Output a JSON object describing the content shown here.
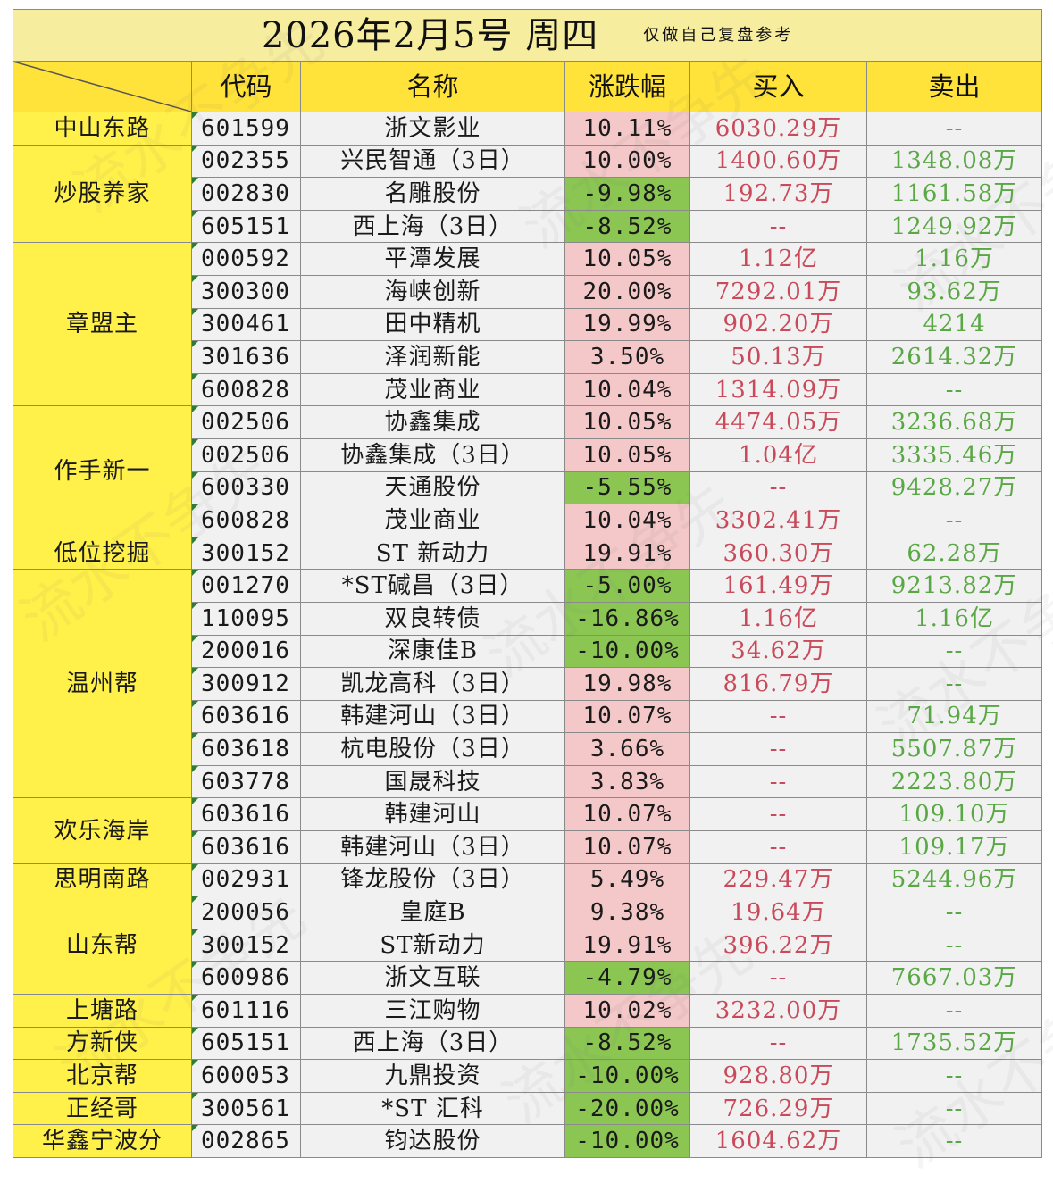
{
  "title": "2026年2月5号  周四",
  "subtitle": "仅做自己复盘参考",
  "headers": [
    "代码",
    "名称",
    "涨跌幅",
    "买入",
    "卖出"
  ],
  "colors": {
    "up": "#f4c8c8",
    "down": "#8bc653",
    "buy_text": "#c94a5a",
    "sell_text": "#5aa845",
    "group_bg": "#fff04a",
    "header_bg": "#ffe23a"
  },
  "watermark_text": "流水不争先",
  "groups": [
    {
      "name": "中山东路",
      "rows": [
        {
          "code": "601599",
          "name": "浙文影业",
          "change": "10.11%",
          "dir": "up",
          "buy": "6030.29万",
          "sell": "--"
        }
      ]
    },
    {
      "name": "炒股养家",
      "rows": [
        {
          "code": "002355",
          "name": "兴民智通（3日）",
          "change": "10.00%",
          "dir": "up",
          "buy": "1400.60万",
          "sell": "1348.08万"
        },
        {
          "code": "002830",
          "name": "名雕股份",
          "change": "-9.98%",
          "dir": "down",
          "buy": "192.73万",
          "sell": "1161.58万"
        },
        {
          "code": "605151",
          "name": "西上海（3日）",
          "change": "-8.52%",
          "dir": "down",
          "buy": "--",
          "sell": "1249.92万"
        }
      ]
    },
    {
      "name": "章盟主",
      "rows": [
        {
          "code": "000592",
          "name": "平潭发展",
          "change": "10.05%",
          "dir": "up",
          "buy": "1.12亿",
          "sell": "1.16万"
        },
        {
          "code": "300300",
          "name": "海峡创新",
          "change": "20.00%",
          "dir": "up",
          "buy": "7292.01万",
          "sell": "93.62万"
        },
        {
          "code": "300461",
          "name": "田中精机",
          "change": "19.99%",
          "dir": "up",
          "buy": "902.20万",
          "sell": "4214"
        },
        {
          "code": "301636",
          "name": "泽润新能",
          "change": "3.50%",
          "dir": "up",
          "buy": "50.13万",
          "sell": "2614.32万"
        },
        {
          "code": "600828",
          "name": "茂业商业",
          "change": "10.04%",
          "dir": "up",
          "buy": "1314.09万",
          "sell": "--"
        }
      ]
    },
    {
      "name": "作手新一",
      "rows": [
        {
          "code": "002506",
          "name": "协鑫集成",
          "change": "10.05%",
          "dir": "up",
          "buy": "4474.05万",
          "sell": "3236.68万"
        },
        {
          "code": "002506",
          "name": "协鑫集成（3日）",
          "change": "10.05%",
          "dir": "up",
          "buy": "1.04亿",
          "sell": "3335.46万"
        },
        {
          "code": "600330",
          "name": "天通股份",
          "change": "-5.55%",
          "dir": "down",
          "buy": "--",
          "sell": "9428.27万"
        },
        {
          "code": "600828",
          "name": "茂业商业",
          "change": "10.04%",
          "dir": "up",
          "buy": "3302.41万",
          "sell": "--"
        }
      ]
    },
    {
      "name": "低位挖掘",
      "rows": [
        {
          "code": "300152",
          "name": "ST  新动力",
          "change": "19.91%",
          "dir": "up",
          "buy": "360.30万",
          "sell": "62.28万"
        }
      ]
    },
    {
      "name": "温州帮",
      "rows": [
        {
          "code": "001270",
          "name": "*ST碱昌（3日）",
          "change": "-5.00%",
          "dir": "down",
          "buy": "161.49万",
          "sell": "9213.82万"
        },
        {
          "code": "110095",
          "name": "双良转债",
          "change": "-16.86%",
          "dir": "down",
          "buy": "1.16亿",
          "sell": "1.16亿"
        },
        {
          "code": "200016",
          "name": "深康佳B",
          "change": "-10.00%",
          "dir": "down",
          "buy": "34.62万",
          "sell": "--"
        },
        {
          "code": "300912",
          "name": "凯龙高科（3日）",
          "change": "19.98%",
          "dir": "up",
          "buy": "816.79万",
          "sell": "--"
        },
        {
          "code": "603616",
          "name": "韩建河山（3日）",
          "change": "10.07%",
          "dir": "up",
          "buy": "--",
          "sell": "71.94万"
        },
        {
          "code": "603618",
          "name": "杭电股份（3日）",
          "change": "3.66%",
          "dir": "up",
          "buy": "--",
          "sell": "5507.87万"
        },
        {
          "code": "603778",
          "name": "国晟科技",
          "change": "3.83%",
          "dir": "up",
          "buy": "--",
          "sell": "2223.80万"
        }
      ]
    },
    {
      "name": "欢乐海岸",
      "rows": [
        {
          "code": "603616",
          "name": "韩建河山",
          "change": "10.07%",
          "dir": "up",
          "buy": "--",
          "sell": "109.10万"
        },
        {
          "code": "603616",
          "name": "韩建河山（3日）",
          "change": "10.07%",
          "dir": "up",
          "buy": "--",
          "sell": "109.17万"
        }
      ]
    },
    {
      "name": "思明南路",
      "rows": [
        {
          "code": "002931",
          "name": "锋龙股份（3日）",
          "change": "5.49%",
          "dir": "up",
          "buy": "229.47万",
          "sell": "5244.96万"
        }
      ]
    },
    {
      "name": "山东帮",
      "rows": [
        {
          "code": "200056",
          "name": "皇庭B",
          "change": "9.38%",
          "dir": "up",
          "buy": "19.64万",
          "sell": "--"
        },
        {
          "code": "300152",
          "name": "ST新动力",
          "change": "19.91%",
          "dir": "up",
          "buy": "396.22万",
          "sell": "--"
        },
        {
          "code": "600986",
          "name": "浙文互联",
          "change": "-4.79%",
          "dir": "down",
          "buy": "--",
          "sell": "7667.03万"
        }
      ]
    },
    {
      "name": "上塘路",
      "rows": [
        {
          "code": "601116",
          "name": "三江购物",
          "change": "10.02%",
          "dir": "up",
          "buy": "3232.00万",
          "sell": "--"
        }
      ]
    },
    {
      "name": "方新侠",
      "rows": [
        {
          "code": "605151",
          "name": "西上海（3日）",
          "change": "-8.52%",
          "dir": "down",
          "buy": "--",
          "sell": "1735.52万"
        }
      ]
    },
    {
      "name": "北京帮",
      "rows": [
        {
          "code": "600053",
          "name": "九鼎投资",
          "change": "-10.00%",
          "dir": "down",
          "buy": "928.80万",
          "sell": "--"
        }
      ]
    },
    {
      "name": "正经哥",
      "rows": [
        {
          "code": "300561",
          "name": "*ST  汇科",
          "change": "-20.00%",
          "dir": "down",
          "buy": "726.29万",
          "sell": "--"
        }
      ]
    },
    {
      "name": "华鑫宁波分",
      "rows": [
        {
          "code": "002865",
          "name": "钧达股份",
          "change": "-10.00%",
          "dir": "down",
          "buy": "1604.62万",
          "sell": "--"
        }
      ]
    }
  ]
}
